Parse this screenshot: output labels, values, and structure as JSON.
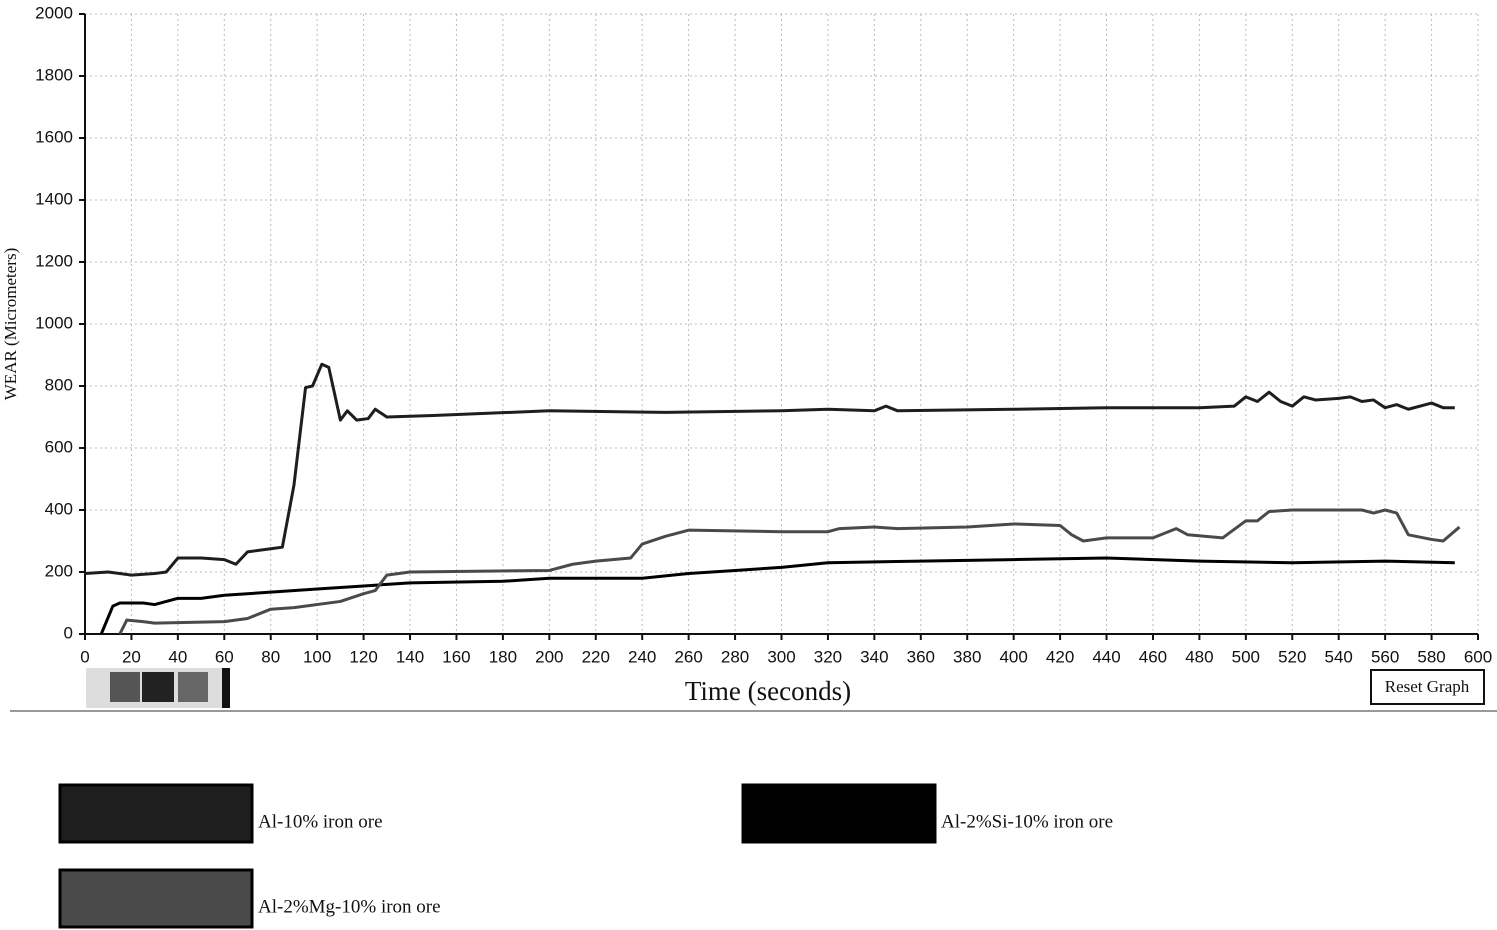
{
  "chart_data": {
    "type": "line",
    "xlabel": "Time (seconds)",
    "ylabel": "WEAR (Micrometers)",
    "xlim": [
      0,
      600
    ],
    "ylim": [
      0,
      2000
    ],
    "xticks": [
      0,
      20,
      40,
      60,
      80,
      100,
      120,
      140,
      160,
      180,
      200,
      220,
      240,
      260,
      280,
      300,
      320,
      340,
      360,
      380,
      400,
      420,
      440,
      460,
      480,
      500,
      520,
      540,
      560,
      580,
      600
    ],
    "yticks": [
      0,
      200,
      400,
      600,
      800,
      1000,
      1200,
      1400,
      1600,
      1800,
      2000
    ],
    "grid": true,
    "legend": "bottom",
    "reset_button": "Reset Graph",
    "series": [
      {
        "name": "Al-10% iron ore",
        "color": "#1e1e1e",
        "x": [
          0,
          10,
          20,
          30,
          35,
          40,
          50,
          60,
          65,
          70,
          80,
          85,
          90,
          95,
          98,
          102,
          105,
          110,
          113,
          117,
          122,
          125,
          130,
          150,
          200,
          250,
          300,
          320,
          340,
          345,
          350,
          400,
          440,
          480,
          495,
          500,
          505,
          510,
          515,
          520,
          525,
          530,
          540,
          545,
          550,
          555,
          560,
          565,
          570,
          580,
          585,
          590
        ],
        "values": [
          195,
          200,
          190,
          195,
          200,
          245,
          245,
          240,
          225,
          265,
          275,
          280,
          480,
          795,
          800,
          870,
          860,
          690,
          720,
          690,
          695,
          725,
          700,
          705,
          720,
          715,
          720,
          725,
          720,
          735,
          720,
          725,
          730,
          730,
          735,
          765,
          750,
          780,
          750,
          735,
          765,
          755,
          760,
          765,
          750,
          755,
          730,
          740,
          725,
          745,
          730,
          730
        ]
      },
      {
        "name": "Al-2%Si-10% iron ore",
        "color": "#000000",
        "x": [
          7,
          12,
          15,
          25,
          30,
          40,
          50,
          60,
          80,
          100,
          110,
          120,
          130,
          140,
          180,
          200,
          240,
          260,
          280,
          300,
          320,
          360,
          400,
          440,
          480,
          520,
          560,
          590
        ],
        "values": [
          0,
          90,
          100,
          100,
          95,
          115,
          115,
          125,
          135,
          145,
          150,
          155,
          160,
          165,
          170,
          180,
          180,
          195,
          205,
          215,
          230,
          235,
          240,
          245,
          235,
          230,
          235,
          230
        ]
      },
      {
        "name": "Al-2%Mg-10% iron ore",
        "color": "#4a4a4a",
        "x": [
          15,
          18,
          25,
          30,
          60,
          70,
          80,
          90,
          110,
          120,
          125,
          130,
          140,
          200,
          210,
          220,
          235,
          240,
          250,
          260,
          300,
          320,
          325,
          340,
          350,
          380,
          400,
          420,
          425,
          430,
          440,
          460,
          470,
          475,
          490,
          500,
          505,
          510,
          520,
          550,
          555,
          560,
          565,
          570,
          580,
          585,
          592
        ],
        "values": [
          0,
          45,
          40,
          35,
          40,
          50,
          80,
          85,
          105,
          130,
          140,
          190,
          200,
          205,
          225,
          235,
          245,
          290,
          315,
          335,
          330,
          330,
          340,
          345,
          340,
          345,
          355,
          350,
          320,
          300,
          310,
          310,
          340,
          320,
          310,
          365,
          365,
          395,
          400,
          400,
          390,
          400,
          390,
          320,
          305,
          300,
          345
        ]
      }
    ]
  }
}
